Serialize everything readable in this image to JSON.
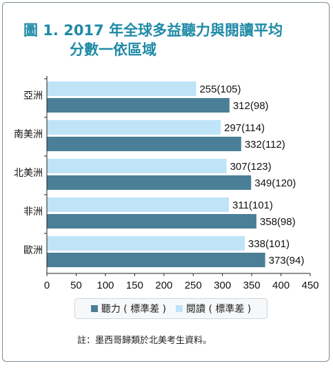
{
  "title": {
    "line1": "圖 1. 2017 年全球多益聽力與閱讀平均",
    "line2": "分數一依區域"
  },
  "colors": {
    "listening": "#4b7f97",
    "reading": "#bfe3f7",
    "title": "#1f8aa6"
  },
  "legend": {
    "listening": "聽力 ( 標準差 )",
    "reading": "閱讀 ( 標準差 )"
  },
  "note": "註：墨西哥歸類於北美考生資料。",
  "chart_data": {
    "type": "bar",
    "orientation": "horizontal",
    "categories": [
      "亞洲",
      "南美洲",
      "北美洲",
      "非洲",
      "歐洲"
    ],
    "series": [
      {
        "name": "閱讀 ( 標準差 )",
        "values": [
          255,
          297,
          307,
          311,
          338
        ],
        "labels": [
          "255(105)",
          "297(114)",
          "307(123)",
          "311(101)",
          "338(101)"
        ]
      },
      {
        "name": "聽力 ( 標準差 )",
        "values": [
          312,
          332,
          349,
          358,
          373
        ],
        "labels": [
          "312(98)",
          "332(112)",
          "349(120)",
          "358(98)",
          "373(94)"
        ]
      }
    ],
    "xlim": [
      0,
      450
    ],
    "xticks": [
      "0",
      "50",
      "100",
      "150",
      "200",
      "250",
      "300",
      "350",
      "400",
      "450"
    ],
    "grid": false,
    "legend": "bottom"
  }
}
